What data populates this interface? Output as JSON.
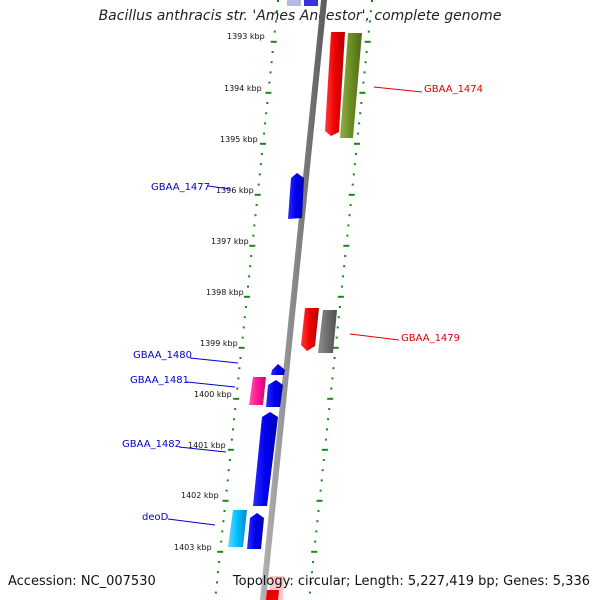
{
  "title": "Bacillus anthracis str. 'Ames Ancestor', complete genome",
  "footer": {
    "accession": "Accession: NC_007530",
    "summary": "Topology: circular; Length: 5,227,419 bp; Genes: 5,336"
  },
  "kbp_labels": [
    "1393 kbp",
    "1394 kbp",
    "1395 kbp",
    "1396 kbp",
    "1397 kbp",
    "1398 kbp",
    "1399 kbp",
    "1400 kbp",
    "1401 kbp",
    "1402 kbp",
    "1403 kbp"
  ],
  "gene_labels": {
    "right": [
      {
        "text": "GBAA_1474",
        "color": "#dd0000"
      },
      {
        "text": "GBAA_1479",
        "color": "#dd0000"
      }
    ],
    "left": [
      {
        "text": "GBAA_1477",
        "color": "#0000cc"
      },
      {
        "text": "GBAA_1480",
        "color": "#0000cc"
      },
      {
        "text": "GBAA_1481",
        "color": "#0000cc"
      },
      {
        "text": "GBAA_1482",
        "color": "#0000cc"
      },
      {
        "text": "deoD",
        "color": "#0000cc"
      }
    ]
  },
  "colors": {
    "backbone": "#8a8a8a",
    "ticks": "#138a13",
    "forward_gene": "#0000ee",
    "reverse_gene": "#ee0000",
    "olive_gene": "#6b8e23",
    "gray_gene": "#6e6e6e",
    "magenta_gene": "#ff1493",
    "cyan_gene": "#00bfff"
  }
}
